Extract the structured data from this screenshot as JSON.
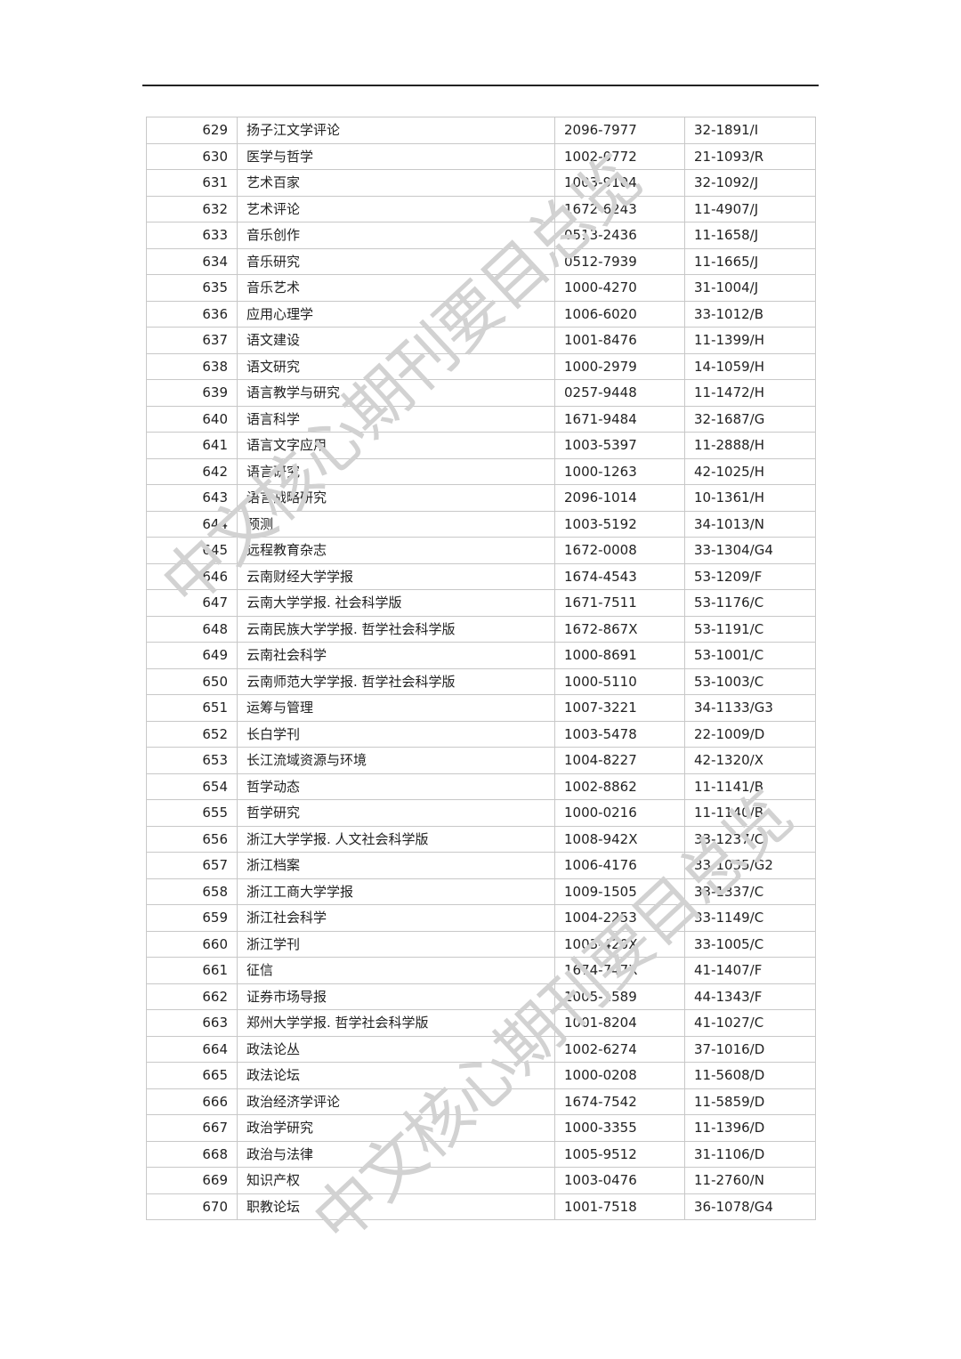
{
  "watermark": "中文核心期刊要目总览",
  "rows": [
    [
      "629",
      "扬子江文学评论",
      "2096-7977",
      "32-1891/I"
    ],
    [
      "630",
      "医学与哲学",
      "1002-0772",
      "21-1093/R"
    ],
    [
      "631",
      "艺术百家",
      "1003-9104",
      "32-1092/J"
    ],
    [
      "632",
      "艺术评论",
      "1672-6243",
      "11-4907/J"
    ],
    [
      "633",
      "音乐创作",
      "0513-2436",
      "11-1658/J"
    ],
    [
      "634",
      "音乐研究",
      "0512-7939",
      "11-1665/J"
    ],
    [
      "635",
      "音乐艺术",
      "1000-4270",
      "31-1004/J"
    ],
    [
      "636",
      "应用心理学",
      "1006-6020",
      "33-1012/B"
    ],
    [
      "637",
      "语文建设",
      "1001-8476",
      "11-1399/H"
    ],
    [
      "638",
      "语文研究",
      "1000-2979",
      "14-1059/H"
    ],
    [
      "639",
      "语言教学与研究",
      "0257-9448",
      "11-1472/H"
    ],
    [
      "640",
      "语言科学",
      "1671-9484",
      "32-1687/G"
    ],
    [
      "641",
      "语言文字应用",
      "1003-5397",
      "11-2888/H"
    ],
    [
      "642",
      "语言研究",
      "1000-1263",
      "42-1025/H"
    ],
    [
      "643",
      "语言战略研究",
      "2096-1014",
      "10-1361/H"
    ],
    [
      "644",
      "预测",
      "1003-5192",
      "34-1013/N"
    ],
    [
      "645",
      "远程教育杂志",
      "1672-0008",
      "33-1304/G4"
    ],
    [
      "646",
      "云南财经大学学报",
      "1674-4543",
      "53-1209/F"
    ],
    [
      "647",
      "云南大学学报. 社会科学版",
      "1671-7511",
      "53-1176/C"
    ],
    [
      "648",
      "云南民族大学学报. 哲学社会科学版",
      "1672-867X",
      "53-1191/C"
    ],
    [
      "649",
      "云南社会科学",
      "1000-8691",
      "53-1001/C"
    ],
    [
      "650",
      "云南师范大学学报. 哲学社会科学版",
      "1000-5110",
      "53-1003/C"
    ],
    [
      "651",
      "运筹与管理",
      "1007-3221",
      "34-1133/G3"
    ],
    [
      "652",
      "长白学刊",
      "1003-5478",
      "22-1009/D"
    ],
    [
      "653",
      "长江流域资源与环境",
      "1004-8227",
      "42-1320/X"
    ],
    [
      "654",
      "哲学动态",
      "1002-8862",
      "11-1141/B"
    ],
    [
      "655",
      "哲学研究",
      "1000-0216",
      "11-1140/B"
    ],
    [
      "656",
      "浙江大学学报. 人文社会科学版",
      "1008-942X",
      "33-1237/C"
    ],
    [
      "657",
      "浙江档案",
      "1006-4176",
      "33-1055/G2"
    ],
    [
      "658",
      "浙江工商大学学报",
      "1009-1505",
      "33-1337/C"
    ],
    [
      "659",
      "浙江社会科学",
      "1004-2253",
      "33-1149/C"
    ],
    [
      "660",
      "浙江学刊",
      "1003-420X",
      "33-1005/C"
    ],
    [
      "661",
      "征信",
      "1674-747X",
      "41-1407/F"
    ],
    [
      "662",
      "证券市场导报",
      "1005-1589",
      "44-1343/F"
    ],
    [
      "663",
      "郑州大学学报. 哲学社会科学版",
      "1001-8204",
      "41-1027/C"
    ],
    [
      "664",
      "政法论丛",
      "1002-6274",
      "37-1016/D"
    ],
    [
      "665",
      "政法论坛",
      "1000-0208",
      "11-5608/D"
    ],
    [
      "666",
      "政治经济学评论",
      "1674-7542",
      "11-5859/D"
    ],
    [
      "667",
      "政治学研究",
      "1000-3355",
      "11-1396/D"
    ],
    [
      "668",
      "政治与法律",
      "1005-9512",
      "31-1106/D"
    ],
    [
      "669",
      "知识产权",
      "1003-0476",
      "11-2760/N"
    ],
    [
      "670",
      "职教论坛",
      "1001-7518",
      "36-1078/G4"
    ]
  ]
}
